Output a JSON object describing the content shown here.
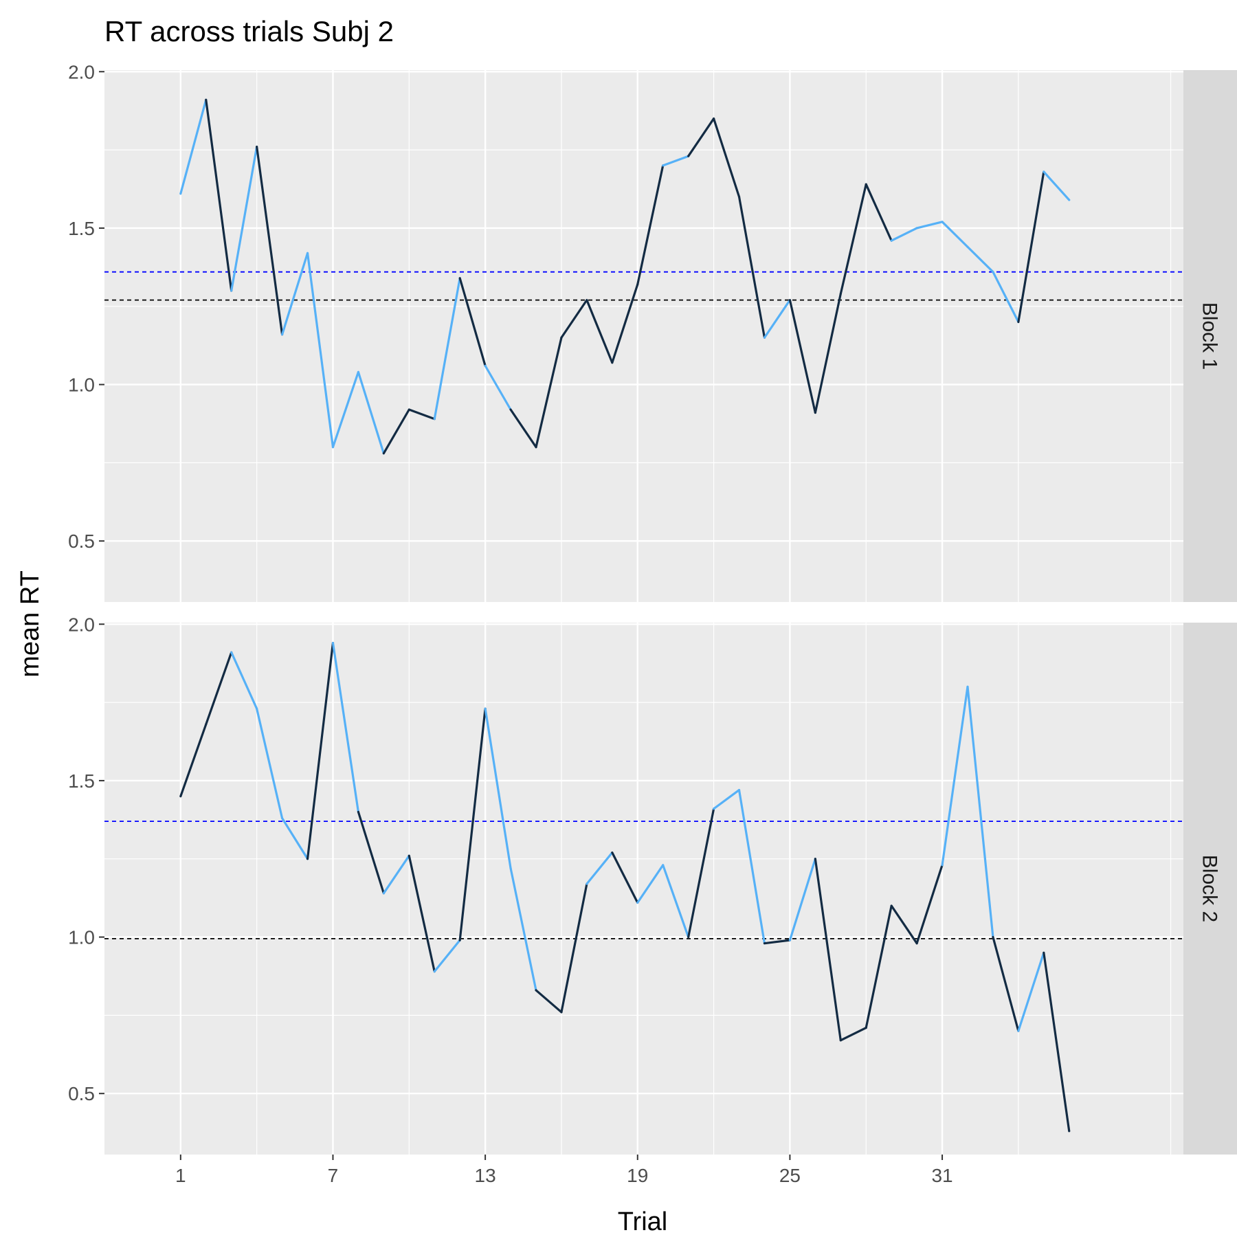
{
  "chart_data": {
    "type": "line",
    "title": "RT across trials Subj 2",
    "xlabel": "Trial",
    "ylabel": "mean RT",
    "xlim": [
      -2,
      40.5
    ],
    "ylim": [
      0.305,
      2.005
    ],
    "x_ticks": [
      1,
      7,
      13,
      19,
      25,
      31
    ],
    "y_ticks": [
      0.5,
      1.0,
      1.5,
      2.0
    ],
    "y_tick_labels": [
      "0.5",
      "1.0",
      "1.5",
      "2.0"
    ],
    "grid": true,
    "colors": {
      "panel_bg": "#ebebeb",
      "grid": "#ffffff",
      "strip_bg": "#d9d9d9",
      "line_dark": "#132b43",
      "line_light": "#56b1f7",
      "hline_blue": "#0000ff",
      "hline_black": "#000000"
    },
    "facets": [
      {
        "label": "Block 1",
        "x": [
          1,
          2,
          3,
          4,
          5,
          6,
          7,
          8,
          9,
          10,
          11,
          12,
          13,
          14,
          15,
          16,
          17,
          18,
          19,
          20,
          21,
          22,
          23,
          24,
          25,
          26,
          27,
          28,
          29,
          30,
          31,
          32,
          33,
          34,
          35,
          36
        ],
        "y": [
          1.61,
          1.91,
          1.3,
          1.76,
          1.16,
          1.42,
          0.8,
          1.04,
          0.78,
          0.92,
          0.89,
          1.34,
          1.06,
          0.92,
          0.8,
          1.15,
          1.27,
          1.07,
          1.32,
          1.7,
          1.73,
          1.85,
          1.6,
          1.15,
          1.27,
          0.91,
          1.29,
          1.64,
          1.46,
          1.5,
          1.52,
          1.44,
          1.36,
          1.2,
          1.68,
          1.59
        ],
        "segment_colors": [
          "light",
          "dark",
          "light",
          "dark",
          "light",
          "light",
          "light",
          "light",
          "dark",
          "dark",
          "light",
          "dark",
          "light",
          "dark",
          "dark",
          "dark",
          "dark",
          "dark",
          "dark",
          "light",
          "dark",
          "dark",
          "dark",
          "light",
          "dark",
          "dark",
          "dark",
          "dark",
          "light",
          "light",
          "light",
          "light",
          "light",
          "dark",
          "light"
        ],
        "hlines": [
          {
            "y": 1.36,
            "color": "#0000ff",
            "style": "dashed"
          },
          {
            "y": 1.27,
            "color": "#000000",
            "style": "dashed"
          }
        ]
      },
      {
        "label": "Block 2",
        "x": [
          1,
          2,
          3,
          4,
          5,
          6,
          7,
          8,
          9,
          10,
          11,
          12,
          13,
          14,
          15,
          16,
          17,
          18,
          19,
          20,
          21,
          22,
          23,
          24,
          25,
          26,
          27,
          28,
          29,
          30,
          31,
          32,
          33,
          34,
          35,
          36
        ],
        "y": [
          1.45,
          1.68,
          1.91,
          1.73,
          1.38,
          1.25,
          1.94,
          1.4,
          1.14,
          1.26,
          0.89,
          0.99,
          1.73,
          1.22,
          0.83,
          0.76,
          1.17,
          1.27,
          1.11,
          1.23,
          1.0,
          1.41,
          1.47,
          0.98,
          0.99,
          1.25,
          0.67,
          0.71,
          1.1,
          0.98,
          1.23,
          1.8,
          1.0,
          0.7,
          0.95,
          0.38
        ],
        "segment_colors": [
          "dark",
          "dark",
          "light",
          "light",
          "light",
          "dark",
          "light",
          "dark",
          "light",
          "dark",
          "light",
          "dark",
          "light",
          "light",
          "dark",
          "dark",
          "light",
          "dark",
          "light",
          "light",
          "dark",
          "light",
          "light",
          "dark",
          "light",
          "dark",
          "dark",
          "dark",
          "dark",
          "dark",
          "light",
          "light",
          "dark",
          "light",
          "dark"
        ],
        "hlines": [
          {
            "y": 1.37,
            "color": "#0000ff",
            "style": "dashed"
          },
          {
            "y": 0.995,
            "color": "#000000",
            "style": "dashed"
          }
        ]
      }
    ]
  }
}
